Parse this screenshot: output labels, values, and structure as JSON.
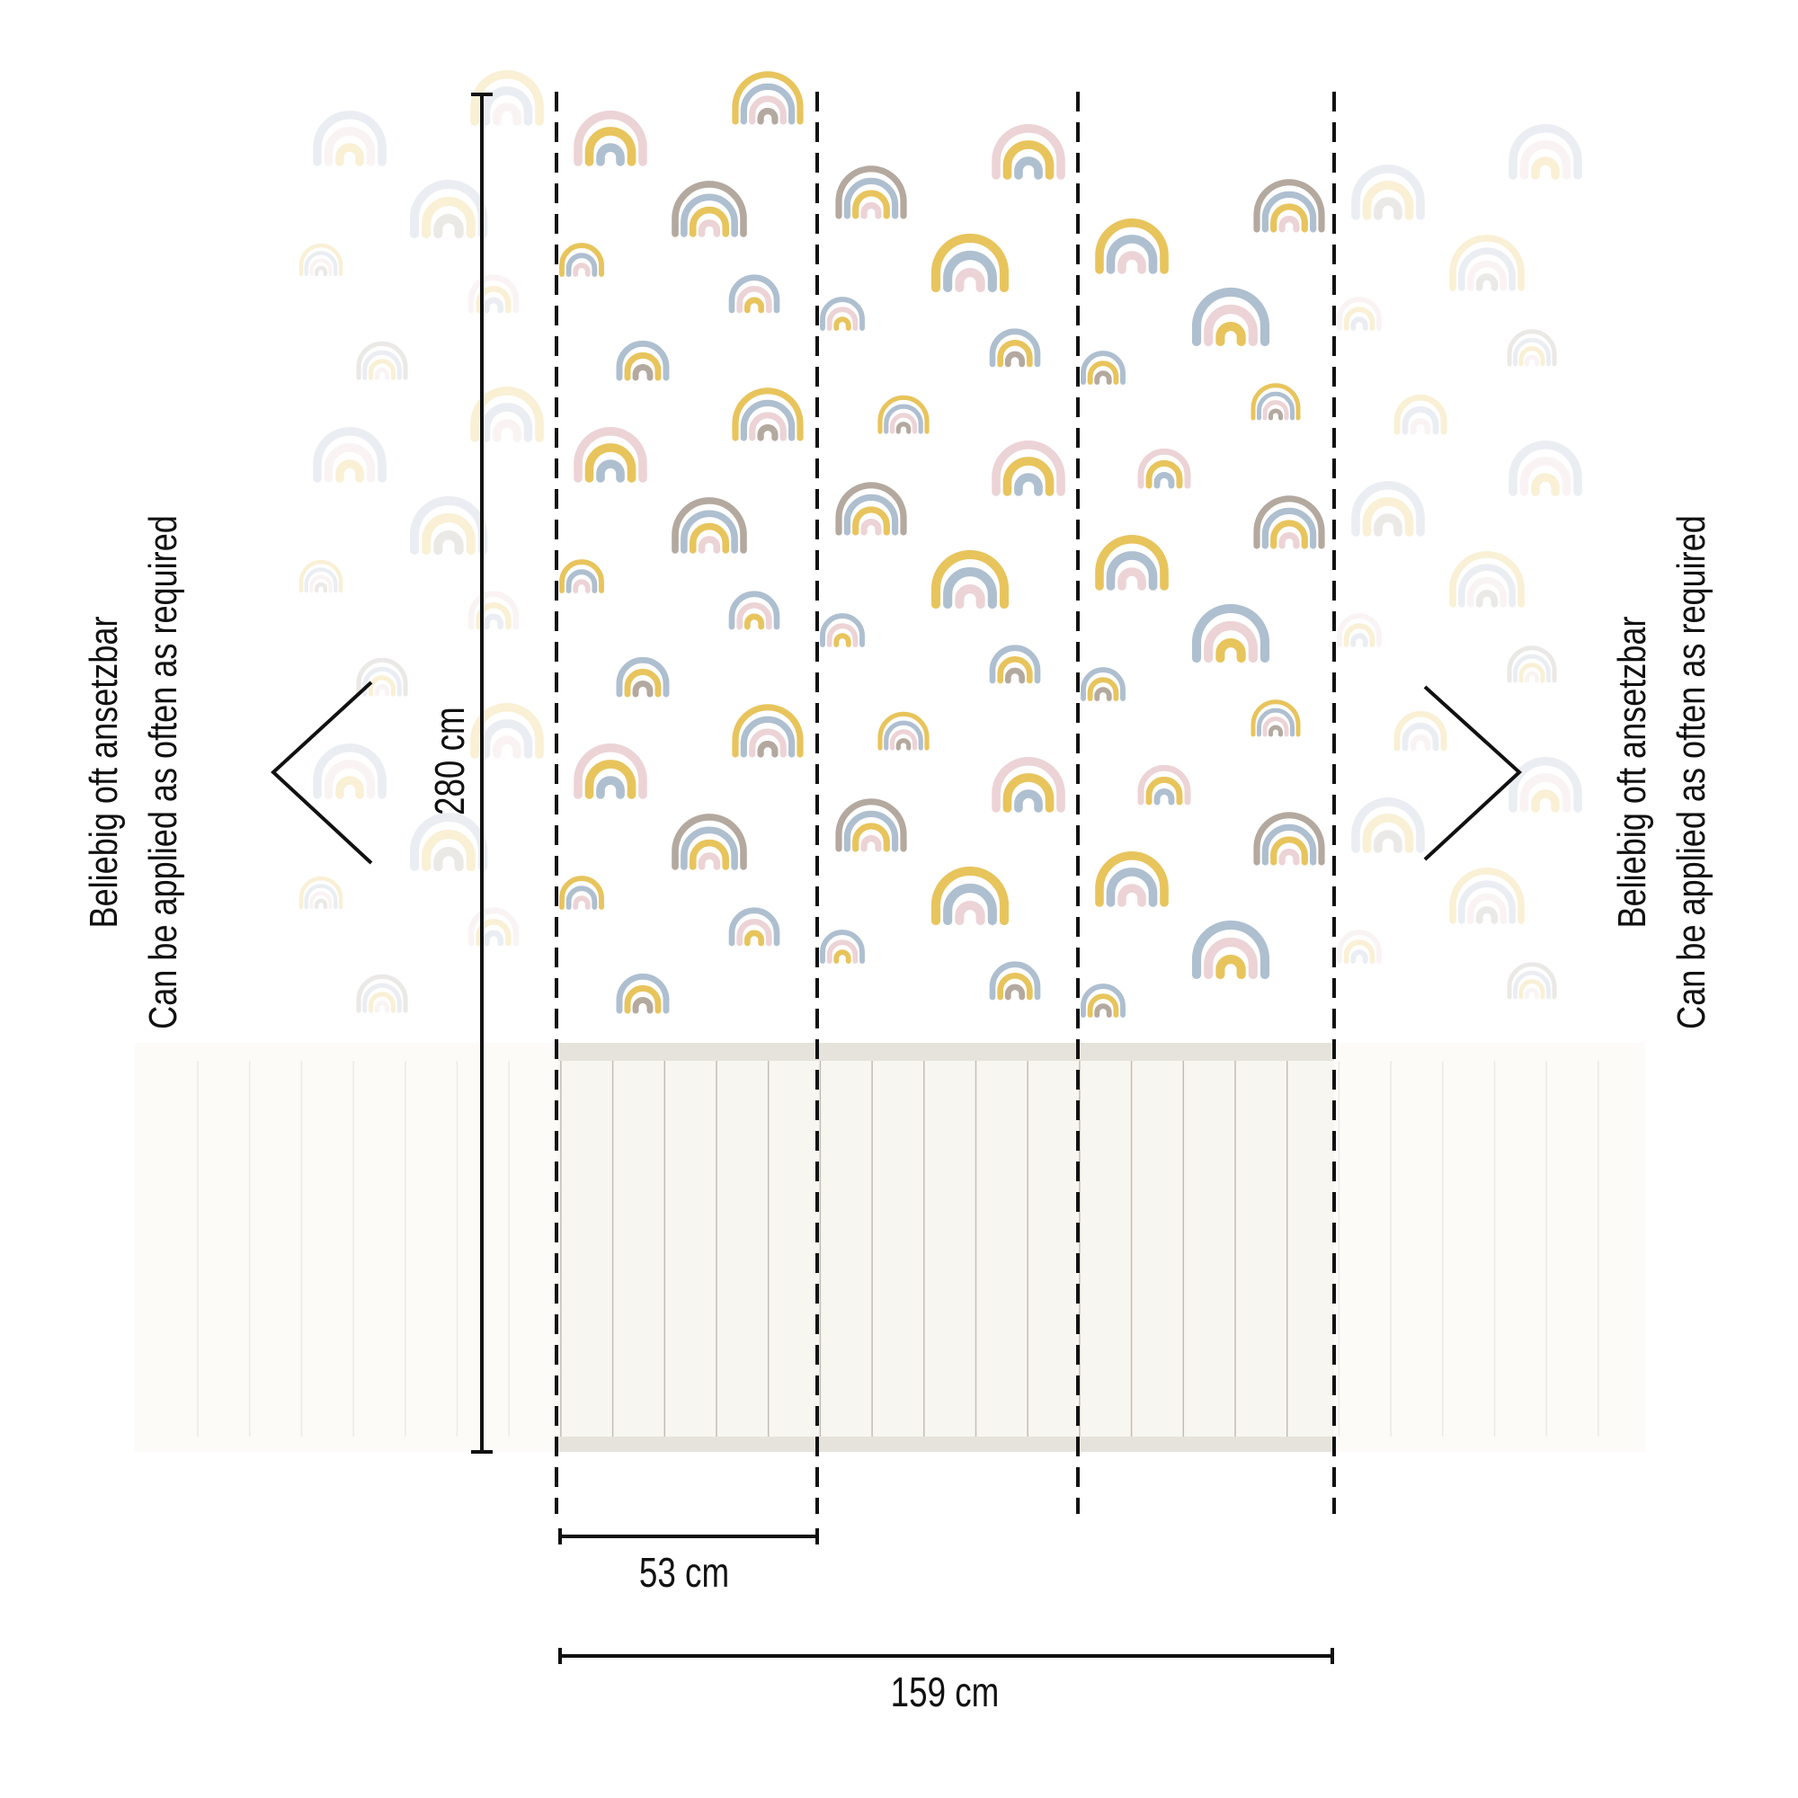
{
  "dimensions": {
    "height_label": "280 cm",
    "strip_width_label": "53 cm",
    "total_width_label": "159 cm"
  },
  "side_notes": {
    "left": [
      "Beliebig oft ansetzbar",
      "Can be applied as often as required"
    ],
    "right": [
      "Beliebig oft ansetzbar",
      "Can be applied as often as required"
    ]
  },
  "icons": {
    "left": "chevron-left-icon",
    "right": "chevron-right-icon"
  },
  "colors": {
    "yellow": "#e8c45c",
    "blue": "#aebfd0",
    "pink": "#ecd3d6",
    "taupe": "#b4a99f",
    "panel": "#f8f6f0",
    "rail": "#e6e3dc",
    "line": "#111111"
  }
}
